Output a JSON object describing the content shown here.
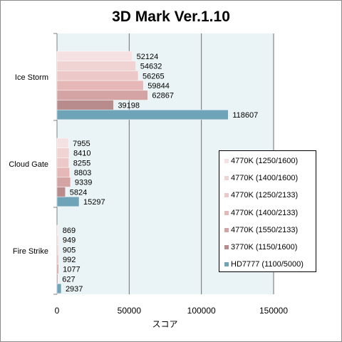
{
  "chart_data": {
    "type": "bar",
    "orientation": "horizontal",
    "title": "3D Mark Ver.1.10",
    "xlabel": "スコア",
    "ylabel": "",
    "xlim": [
      0,
      150000
    ],
    "xticks": [
      0,
      50000,
      100000,
      150000
    ],
    "grid": true,
    "legend_position": "right",
    "categories": [
      "Ice Storm",
      "Cloud Gate",
      "Fire Strike"
    ],
    "series": [
      {
        "name": "4770K (1250/1600)",
        "color": "#f5e1e1",
        "values": [
          52124,
          7955,
          869
        ]
      },
      {
        "name": "4770K (1400/1600)",
        "color": "#f0d3d3",
        "values": [
          54632,
          8410,
          949
        ]
      },
      {
        "name": "4770K (1250/2133)",
        "color": "#edc8c8",
        "values": [
          56265,
          8255,
          905
        ]
      },
      {
        "name": "4770K (1400/2133)",
        "color": "#e6b7b7",
        "values": [
          59844,
          8803,
          992
        ]
      },
      {
        "name": "4770K (1550/2133)",
        "color": "#d4a3a3",
        "values": [
          62867,
          9339,
          1077
        ]
      },
      {
        "name": "3770K (1150/1600)",
        "color": "#b88c8c",
        "values": [
          39198,
          5824,
          627
        ]
      },
      {
        "name": "HD7777 (1100/5000)",
        "color": "#6fa3b8",
        "values": [
          118607,
          15297,
          2937
        ]
      }
    ]
  },
  "colors": {
    "plot_background": "#eaf3f5",
    "gridline": "#6e6e6e"
  }
}
